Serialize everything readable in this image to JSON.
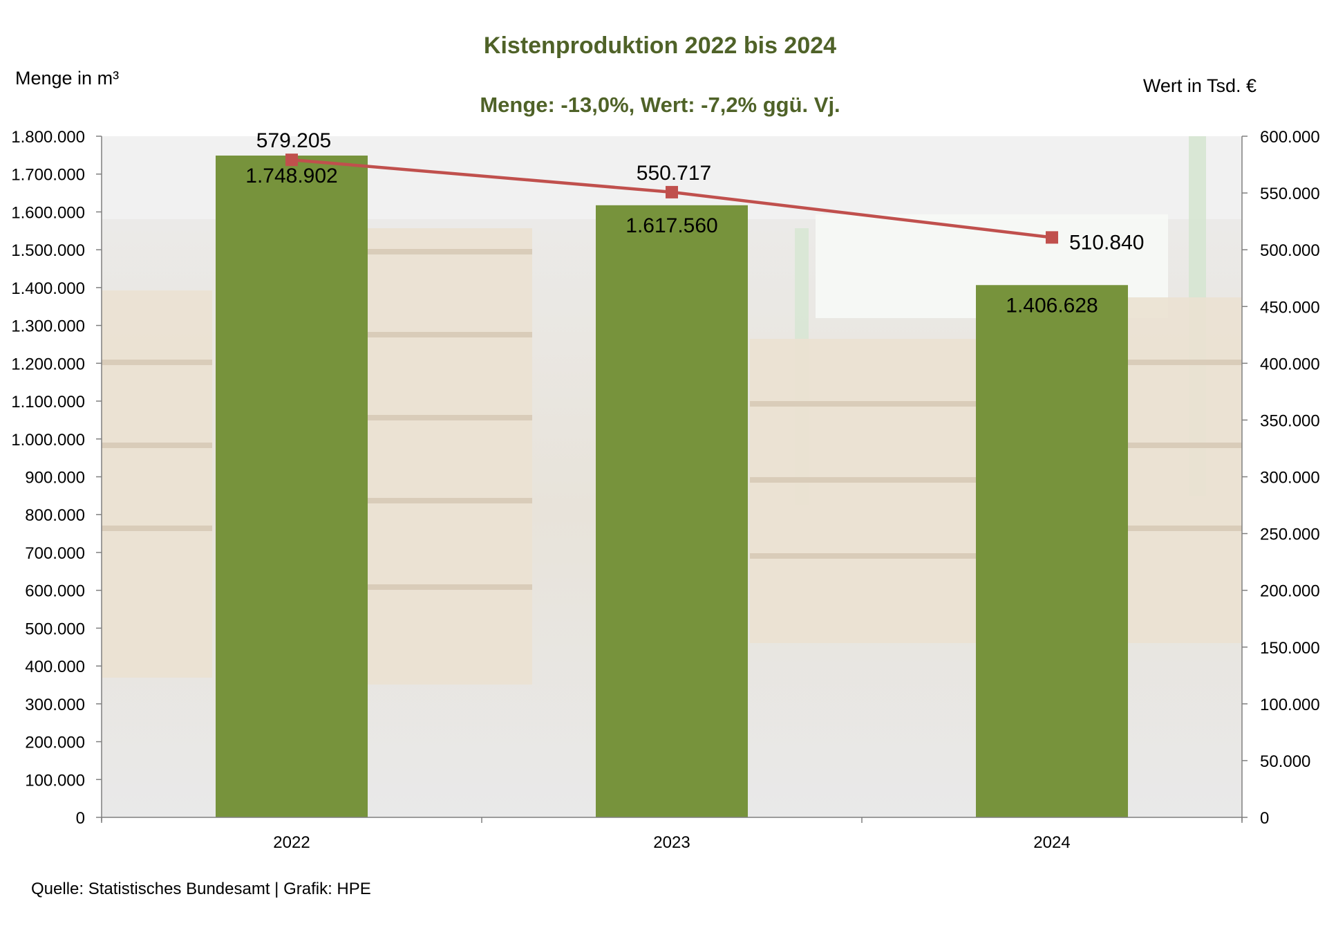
{
  "chart_data": {
    "type": "bar+line",
    "title": "Kistenproduktion 2022 bis 2024",
    "subtitle": "Menge: -13,0%, Wert: -7,2% ggü. Vj.",
    "ylabel_left": "Menge in m³",
    "ylabel_right": "Wert in Tsd. €",
    "categories": [
      "2022",
      "2023",
      "2024"
    ],
    "series": [
      {
        "type": "bar",
        "axis": "left",
        "values": [
          1748902,
          1617560,
          1406628
        ],
        "labels": [
          "1.748.902",
          "1.617.560",
          "1.406.628"
        ],
        "color": "#77933c"
      },
      {
        "type": "line",
        "axis": "right",
        "values": [
          579205,
          550717,
          510840
        ],
        "labels": [
          "579.205",
          "550.717",
          "510.840"
        ],
        "color": "#c0504d"
      }
    ],
    "ylim_left": [
      0,
      1800000
    ],
    "ylim_right": [
      0,
      600000
    ],
    "yticks_left": [
      "0",
      "100.000",
      "200.000",
      "300.000",
      "400.000",
      "500.000",
      "600.000",
      "700.000",
      "800.000",
      "900.000",
      "1.000.000",
      "1.100.000",
      "1.200.000",
      "1.300.000",
      "1.400.000",
      "1.500.000",
      "1.600.000",
      "1.700.000",
      "1.800.000"
    ],
    "yticks_right": [
      "0",
      "50.000",
      "100.000",
      "150.000",
      "200.000",
      "250.000",
      "300.000",
      "350.000",
      "400.000",
      "450.000",
      "500.000",
      "550.000",
      "600.000"
    ],
    "grid": false,
    "legend": "none",
    "source": "Quelle: Statistisches Bundesamt | Grafik: HPE"
  }
}
